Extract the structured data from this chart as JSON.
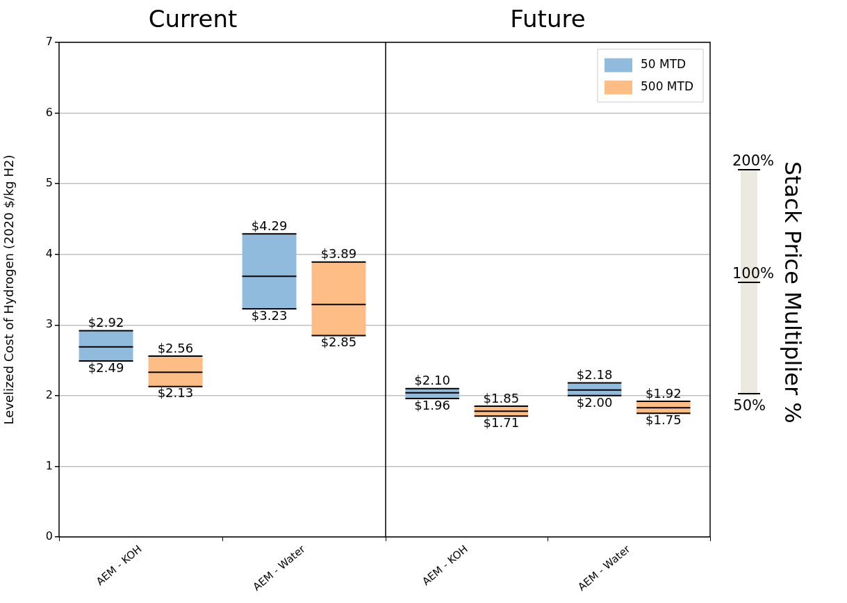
{
  "chart_data": [
    {
      "type": "box",
      "title": "Current",
      "ylabel": "Levelized Cost of Hydrogen (2020 $/kg H2)",
      "categories": [
        "AEM - KOH",
        "AEM - Water"
      ],
      "ylim": [
        0,
        7
      ],
      "yticks": [
        0,
        1,
        2,
        3,
        4,
        5,
        6,
        7
      ],
      "grid": "y",
      "series": [
        {
          "color": "#90bbdd",
          "boxes": [
            {
              "low": 2.49,
              "q1": 2.49,
              "median": 2.69,
              "q3": 2.92,
              "high": 2.92
            },
            {
              "low": 3.23,
              "q1": 3.23,
              "median": 3.69,
              "q3": 4.29,
              "high": 4.29
            }
          ]
        },
        {
          "color": "#fdbd85",
          "boxes": [
            {
              "low": 2.13,
              "q1": 2.13,
              "median": 2.33,
              "q3": 2.56,
              "high": 2.56
            },
            {
              "low": 2.85,
              "q1": 2.85,
              "median": 3.29,
              "q3": 3.89,
              "high": 3.89
            }
          ]
        }
      ],
      "annotations": [
        "$2.92",
        "$2.49",
        "$2.56",
        "$2.13",
        "$4.29",
        "$3.23",
        "$3.89",
        "$2.85"
      ]
    },
    {
      "type": "box",
      "title": "Future",
      "categories": [
        "AEM - KOH",
        "AEM - Water"
      ],
      "ylim": [
        0,
        7
      ],
      "yticks": [
        0,
        1,
        2,
        3,
        4,
        5,
        6,
        7
      ],
      "grid": "y",
      "tick_labels": "x",
      "legend": "top right",
      "series": [
        {
          "name": "50 MTD",
          "color": "#90bbdd",
          "boxes": [
            {
              "low": 1.96,
              "q1": 1.96,
              "median": 2.04,
              "q3": 2.1,
              "high": 2.1
            },
            {
              "low": 2.0,
              "q1": 2.0,
              "median": 2.08,
              "q3": 2.18,
              "high": 2.18
            }
          ]
        },
        {
          "name": "500 MTD",
          "color": "#fdbd85",
          "boxes": [
            {
              "low": 1.71,
              "q1": 1.71,
              "median": 1.78,
              "q3": 1.85,
              "high": 1.85
            },
            {
              "low": 1.75,
              "q1": 1.75,
              "median": 1.83,
              "q3": 1.92,
              "high": 1.92
            }
          ]
        }
      ],
      "annotations": [
        "$2.10",
        "$1.96",
        "$1.85",
        "$1.71",
        "$2.18",
        "$2.00",
        "$1.92",
        "$1.75"
      ]
    },
    {
      "type": "other",
      "title": "Stack Price Multiplier %",
      "annotations": [
        "200%",
        "100%",
        "50%"
      ]
    }
  ]
}
